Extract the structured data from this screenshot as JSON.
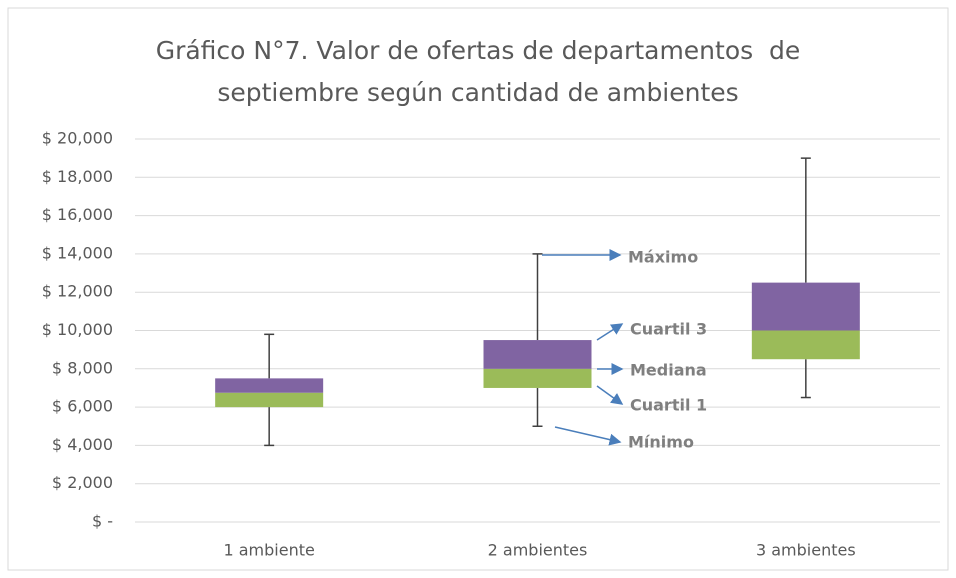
{
  "chart_data": {
    "type": "box",
    "title": "Gráfico N°7. Valor de ofertas de departamentos  de septiembre según cantidad de ambientes",
    "categories": [
      "1 ambiente",
      "2 ambientes",
      "3 ambientes"
    ],
    "min": [
      4000,
      5000,
      6500
    ],
    "q1": [
      6000,
      7000,
      8500
    ],
    "median": [
      6750,
      8000,
      10000
    ],
    "q3": [
      7500,
      9500,
      12500
    ],
    "max": [
      9800,
      14000,
      19000
    ],
    "lower_color": "#9bbb59",
    "upper_color": "#8064a2",
    "whisker_color": "#404040",
    "ylim": [
      0,
      20000
    ],
    "yticks": [
      {
        "value": 0,
        "label": "$ -"
      },
      {
        "value": 2000,
        "label": "$ 2,000"
      },
      {
        "value": 4000,
        "label": "$ 4,000"
      },
      {
        "value": 6000,
        "label": "$ 6,000"
      },
      {
        "value": 8000,
        "label": "$ 8,000"
      },
      {
        "value": 10000,
        "label": "$ 10,000"
      },
      {
        "value": 12000,
        "label": "$ 12,000"
      },
      {
        "value": 14000,
        "label": "$ 14,000"
      },
      {
        "value": 16000,
        "label": "$ 16,000"
      },
      {
        "value": 18000,
        "label": "$ 18,000"
      },
      {
        "value": 20000,
        "label": "$ 20,000"
      }
    ],
    "grid": true,
    "annotations": [
      "Máximo",
      "Cuartil 3",
      "Mediana",
      "Cuartil 1",
      "Mínimo"
    ]
  }
}
